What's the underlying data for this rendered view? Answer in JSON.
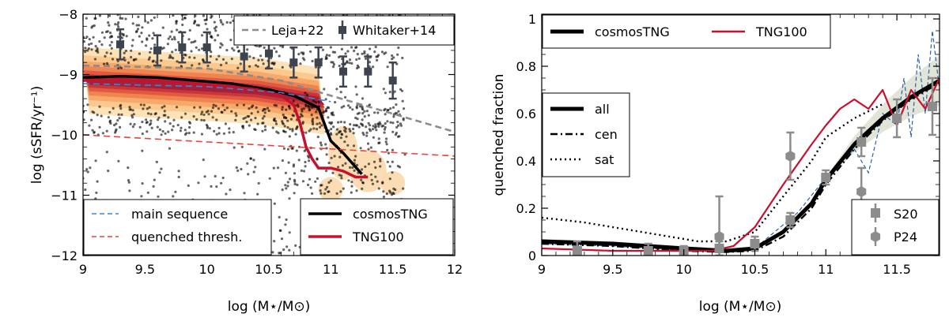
{
  "chart_data": [
    {
      "type": "scatter",
      "panel": "left",
      "xlabel": "log (M⋆/M⊙)",
      "ylabel": "log (sSFR/yr⁻¹)",
      "xlim": [
        9,
        12
      ],
      "ylim": [
        -12,
        -8
      ],
      "xticks": [
        "9",
        "9.5",
        "10",
        "10.5",
        "11",
        "11.5",
        "12"
      ],
      "yticks": [
        "−12",
        "−11",
        "−10",
        "−9",
        "−8"
      ],
      "series": [
        {
          "name": "cosmosTNG",
          "color": "#000000",
          "style": "solid",
          "x": [
            9.0,
            9.3,
            9.6,
            9.9,
            10.2,
            10.5,
            10.7,
            10.8,
            10.9,
            11.0,
            11.1,
            11.25
          ],
          "y": [
            -9.05,
            -9.03,
            -9.05,
            -9.1,
            -9.15,
            -9.25,
            -9.35,
            -9.45,
            -9.55,
            -10.1,
            -10.3,
            -10.65
          ]
        },
        {
          "name": "TNG100",
          "color": "#c8102e",
          "style": "solid",
          "x": [
            9.0,
            9.3,
            9.6,
            9.9,
            10.2,
            10.4,
            10.6,
            10.7,
            10.75,
            10.8,
            10.85,
            10.9,
            11.0,
            11.1,
            11.2,
            11.3
          ],
          "y": [
            -9.1,
            -9.08,
            -9.1,
            -9.15,
            -9.2,
            -9.25,
            -9.35,
            -9.5,
            -9.8,
            -10.2,
            -10.4,
            -10.55,
            -10.55,
            -10.6,
            -10.7,
            -10.7
          ]
        },
        {
          "name": "Leja+22",
          "color": "#8c8c8c",
          "style": "dashed",
          "x": [
            9.0,
            10.0,
            10.6,
            11.0,
            11.5,
            12.0
          ],
          "y": [
            -8.85,
            -8.9,
            -9.1,
            -9.35,
            -9.65,
            -9.95
          ]
        },
        {
          "name": "main sequence",
          "color": "#3a86d8",
          "style": "dashed",
          "x": [
            9.0,
            10.0,
            10.6,
            11.0
          ],
          "y": [
            -9.15,
            -9.2,
            -9.3,
            -9.45
          ]
        },
        {
          "name": "quenched thresh.",
          "color": "#e8443a",
          "style": "dashed",
          "x": [
            9.0,
            12.0
          ],
          "y": [
            -10.0,
            -10.35
          ]
        },
        {
          "name": "Whitaker+14",
          "color": "#3d4450",
          "style": "errorbar",
          "x": [
            9.3,
            9.6,
            9.8,
            10.0,
            10.3,
            10.5,
            10.7,
            10.9,
            11.1,
            11.3,
            11.5
          ],
          "y": [
            -8.5,
            -8.6,
            -8.55,
            -8.55,
            -8.7,
            -8.65,
            -8.8,
            -8.8,
            -8.95,
            -8.95,
            -9.1
          ],
          "err": [
            0.25,
            0.25,
            0.25,
            0.25,
            0.25,
            0.25,
            0.25,
            0.25,
            0.25,
            0.25,
            0.3
          ]
        }
      ],
      "legends": {
        "top": [
          "Leja+22",
          "Whitaker+14"
        ],
        "bottom_left": [
          "main sequence",
          "quenched thresh."
        ],
        "bottom_right": [
          "cosmosTNG",
          "TNG100"
        ]
      }
    },
    {
      "type": "line",
      "panel": "right",
      "xlabel": "log (M⋆/M⊙)",
      "ylabel": "quenched fraction",
      "xlim": [
        9,
        11.8
      ],
      "ylim": [
        0,
        1.02
      ],
      "xticks": [
        "9",
        "9.5",
        "10",
        "10.5",
        "11",
        "11.5"
      ],
      "yticks": [
        "0",
        "0.2",
        "0.4",
        "0.6",
        "0.8",
        "1"
      ],
      "series": [
        {
          "name": "cosmosTNG all",
          "color": "#000000",
          "style": "solid",
          "x": [
            9.0,
            9.5,
            10.0,
            10.3,
            10.5,
            10.7,
            10.9,
            11.0,
            11.2,
            11.4,
            11.6,
            11.8
          ],
          "y": [
            0.06,
            0.05,
            0.03,
            0.02,
            0.03,
            0.1,
            0.22,
            0.32,
            0.47,
            0.58,
            0.67,
            0.74
          ]
        },
        {
          "name": "cosmosTNG cen",
          "color": "#000000",
          "style": "dashdot",
          "x": [
            9.0,
            9.5,
            10.0,
            10.3,
            10.5,
            10.7,
            10.9,
            11.0,
            11.2,
            11.4,
            11.6,
            11.8
          ],
          "y": [
            0.05,
            0.04,
            0.02,
            0.015,
            0.02,
            0.08,
            0.2,
            0.3,
            0.45,
            0.57,
            0.66,
            0.73
          ]
        },
        {
          "name": "cosmosTNG sat",
          "color": "#000000",
          "style": "dotted",
          "x": [
            9.0,
            9.3,
            9.6,
            9.9,
            10.1,
            10.3,
            10.5,
            10.7,
            10.9,
            11.0,
            11.2,
            11.4
          ],
          "y": [
            0.16,
            0.14,
            0.11,
            0.08,
            0.06,
            0.06,
            0.1,
            0.25,
            0.4,
            0.5,
            0.58,
            0.64
          ]
        },
        {
          "name": "TNG100",
          "color": "#c8102e",
          "style": "solid",
          "x": [
            9.0,
            9.5,
            10.0,
            10.2,
            10.35,
            10.5,
            10.7,
            10.9,
            11.0,
            11.1,
            11.2,
            11.3,
            11.4,
            11.5,
            11.6,
            11.7,
            11.8
          ],
          "y": [
            0.03,
            0.02,
            0.02,
            0.02,
            0.04,
            0.12,
            0.3,
            0.47,
            0.55,
            0.62,
            0.66,
            0.62,
            0.7,
            0.55,
            0.7,
            0.62,
            0.75
          ]
        }
      ],
      "observations": [
        {
          "name": "S20",
          "marker": "square",
          "color": "#8c8c8c",
          "x": [
            9.25,
            9.75,
            10.0,
            10.25,
            10.5,
            10.75,
            11.0,
            11.25,
            11.5,
            11.75
          ],
          "y": [
            0.02,
            0.02,
            0.02,
            0.03,
            0.05,
            0.15,
            0.33,
            0.48,
            0.58,
            0.63
          ],
          "err": [
            0.04,
            0.03,
            0.02,
            0.03,
            0.03,
            0.03,
            0.03,
            0.06,
            0.08,
            0.12
          ]
        },
        {
          "name": "P24",
          "marker": "hexagon",
          "color": "#8c8c8c",
          "x": [
            10.25,
            10.75,
            11.25
          ],
          "y": [
            0.08,
            0.42,
            0.27
          ],
          "err": [
            0.17,
            0.1,
            0.1
          ]
        }
      ],
      "legends": {
        "top": [
          "cosmosTNG",
          "TNG100"
        ],
        "left": [
          "all",
          "cen",
          "sat"
        ],
        "bottom_right": [
          "S20",
          "P24"
        ]
      }
    }
  ]
}
